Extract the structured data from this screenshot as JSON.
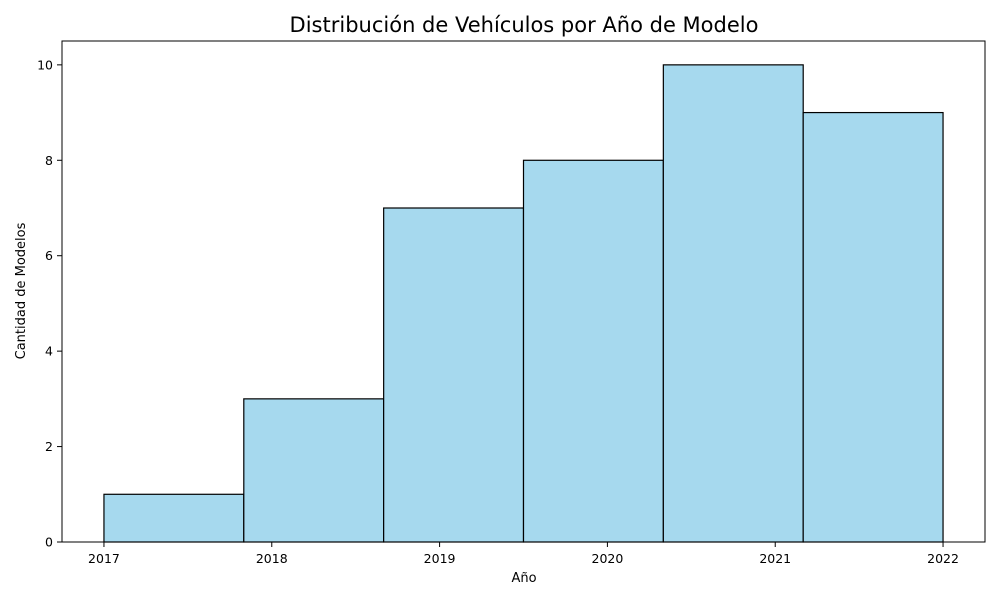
{
  "chart_data": {
    "type": "bar",
    "title": "Distribución de Vehículos por Año de Modelo",
    "xlabel": "Año",
    "ylabel": "Cantidad de Modelos",
    "bins": [
      {
        "start": 2017,
        "end": 2017.8333,
        "value": 1
      },
      {
        "start": 2017.8333,
        "end": 2018.6667,
        "value": 3
      },
      {
        "start": 2018.6667,
        "end": 2019.5,
        "value": 7
      },
      {
        "start": 2019.5,
        "end": 2020.3333,
        "value": 8
      },
      {
        "start": 2020.3333,
        "end": 2021.1667,
        "value": 10
      },
      {
        "start": 2021.1667,
        "end": 2022,
        "value": 9
      }
    ],
    "xticks": [
      {
        "value": 2017,
        "label": "2017"
      },
      {
        "value": 2018,
        "label": "2018"
      },
      {
        "value": 2019,
        "label": "2019"
      },
      {
        "value": 2020,
        "label": "2020"
      },
      {
        "value": 2021,
        "label": "2021"
      },
      {
        "value": 2022,
        "label": "2022"
      }
    ],
    "yticks": [
      {
        "value": 0,
        "label": "0"
      },
      {
        "value": 2,
        "label": "2"
      },
      {
        "value": 4,
        "label": "4"
      },
      {
        "value": 6,
        "label": "6"
      },
      {
        "value": 8,
        "label": "8"
      },
      {
        "value": 10,
        "label": "10"
      }
    ],
    "xlim": [
      2016.75,
      2022.25
    ],
    "ylim": [
      0,
      10.5
    ],
    "grid": false,
    "colors": {
      "bar_fill": "#a6d9ee",
      "bar_edge": "#000000",
      "axis": "#000000"
    }
  }
}
